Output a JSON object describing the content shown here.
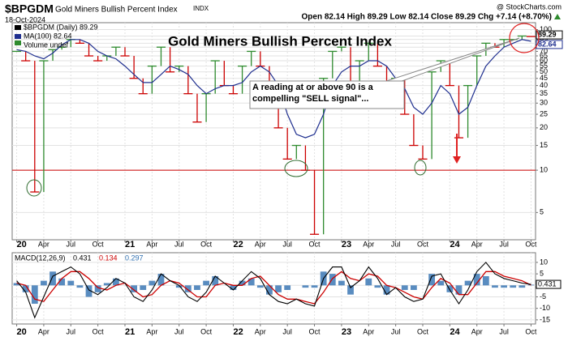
{
  "header": {
    "symbol": "$BPGDM",
    "name": "Gold Miners Bullish Percent Index",
    "exchange": "INDX",
    "date": "18-Oct-2024",
    "source": "@ StockCharts.com",
    "quote": "Open 82.14 High 89.29 Low 82.14 Close 89.29 Chg +7.14 (+8.70%)"
  },
  "chart_data": [
    {
      "type": "line",
      "title": "Gold Miners Bullish Percent Index",
      "x": [
        "2020-01",
        "2020-02",
        "2020-03",
        "2020-04",
        "2020-05",
        "2020-06",
        "2020-07",
        "2020-08",
        "2020-09",
        "2020-10",
        "2020-11",
        "2020-12",
        "2021-01",
        "2021-02",
        "2021-03",
        "2021-04",
        "2021-05",
        "2021-06",
        "2021-07",
        "2021-08",
        "2021-09",
        "2021-10",
        "2021-11",
        "2021-12",
        "2022-01",
        "2022-02",
        "2022-03",
        "2022-04",
        "2022-05",
        "2022-06",
        "2022-07",
        "2022-08",
        "2022-09",
        "2022-10",
        "2022-11",
        "2022-12",
        "2023-01",
        "2023-02",
        "2023-03",
        "2023-04",
        "2023-05",
        "2023-06",
        "2023-07",
        "2023-08",
        "2023-09",
        "2023-10",
        "2023-11",
        "2023-12",
        "2024-01",
        "2024-02",
        "2024-03",
        "2024-04",
        "2024-05",
        "2024-06",
        "2024-07",
        "2024-08",
        "2024-09",
        "2024-10"
      ],
      "series": [
        {
          "name": "$BPGDM (Daily) 89.29",
          "color": "#000000",
          "end_label": "89.29",
          "values": [
            70,
            60,
            7,
            60,
            72,
            75,
            85,
            80,
            65,
            60,
            65,
            75,
            65,
            45,
            35,
            55,
            75,
            50,
            55,
            35,
            22,
            35,
            60,
            40,
            35,
            55,
            70,
            55,
            30,
            20,
            12,
            15,
            10,
            3.5,
            45,
            70,
            75,
            40,
            60,
            80,
            55,
            35,
            45,
            25,
            15,
            12,
            50,
            60,
            40,
            17,
            40,
            65,
            80,
            75,
            85,
            85,
            90,
            89.29
          ]
        },
        {
          "name": "MA(100) 82.64",
          "color": "#1f2f8f",
          "end_label": "82.64",
          "values": [
            72,
            70,
            65,
            62,
            68,
            78,
            85,
            85,
            80,
            70,
            65,
            62,
            55,
            48,
            42,
            42,
            48,
            55,
            52,
            48,
            40,
            35,
            38,
            40,
            40,
            42,
            50,
            55,
            50,
            40,
            25,
            18,
            17,
            18,
            25,
            40,
            50,
            55,
            55,
            60,
            60,
            55,
            45,
            38,
            28,
            25,
            30,
            40,
            35,
            25,
            28,
            40,
            55,
            65,
            75,
            80,
            85,
            82.64
          ]
        }
      ],
      "legend_note": "Volume undef",
      "up_color": "#2e8b2e",
      "down_color": "#cc0000",
      "log_scale": true,
      "grid": true,
      "ylim": [
        3.2,
        112
      ],
      "yticks": [
        5,
        10,
        15,
        20,
        25,
        30,
        35,
        40,
        45,
        50,
        55,
        60,
        65,
        70,
        75,
        80,
        85,
        90,
        100
      ],
      "xticks": [
        {
          "value": "2020-01",
          "label": "20"
        },
        {
          "value": "2020-04",
          "label": "Apr"
        },
        {
          "value": "2020-07",
          "label": "Jul"
        },
        {
          "value": "2020-10",
          "label": "Oct"
        },
        {
          "value": "2021-01",
          "label": "21"
        },
        {
          "value": "2021-04",
          "label": "Apr"
        },
        {
          "value": "2021-07",
          "label": "Jul"
        },
        {
          "value": "2021-10",
          "label": "Oct"
        },
        {
          "value": "2022-01",
          "label": "22"
        },
        {
          "value": "2022-04",
          "label": "Apr"
        },
        {
          "value": "2022-07",
          "label": "Jul"
        },
        {
          "value": "2022-10",
          "label": "Oct"
        },
        {
          "value": "2023-01",
          "label": "23"
        },
        {
          "value": "2023-04",
          "label": "Apr"
        },
        {
          "value": "2023-07",
          "label": "Jul"
        },
        {
          "value": "2023-10",
          "label": "Oct"
        },
        {
          "value": "2024-01",
          "label": "24"
        },
        {
          "value": "2024-04",
          "label": "Apr"
        },
        {
          "value": "2024-07",
          "label": "Jul"
        },
        {
          "value": "2024-10",
          "label": "Oct"
        }
      ],
      "hline": {
        "value": 10,
        "color": "#cc0000"
      },
      "annotation": "A reading at or above 90 is a compelling \"SELL signal\"..."
    },
    {
      "type": "macd",
      "title": "MACD(12,26,9)",
      "series": [
        {
          "name": "0.431",
          "color": "#000000",
          "values": [
            2,
            -3,
            -14,
            -5,
            4,
            6,
            8,
            5,
            -2,
            -4,
            -1,
            3,
            1,
            -5,
            -7,
            -2,
            5,
            2,
            0,
            -5,
            -7,
            -3,
            4,
            1,
            -2,
            2,
            6,
            3,
            -4,
            -7,
            -8,
            -6,
            -8,
            -9,
            3,
            8,
            8,
            -1,
            2,
            8,
            3,
            -4,
            -1,
            -5,
            -7,
            -6,
            4,
            5,
            -2,
            -8,
            -2,
            6,
            10,
            5,
            3,
            2,
            1,
            0.431
          ]
        },
        {
          "name": "0.134",
          "color": "#cc0000",
          "values": [
            1,
            0,
            -6,
            -7,
            -2,
            3,
            6,
            6,
            3,
            -1,
            -2,
            0,
            1,
            -2,
            -5,
            -4,
            0,
            2,
            1,
            -2,
            -5,
            -5,
            0,
            1,
            0,
            0,
            3,
            4,
            0,
            -4,
            -6,
            -6,
            -7,
            -8,
            -3,
            3,
            6,
            3,
            2,
            5,
            4,
            0,
            -1,
            -3,
            -5,
            -6,
            -1,
            3,
            1,
            -4,
            -4,
            1,
            6,
            6,
            4,
            3,
            2,
            0.134
          ]
        },
        {
          "name": "0.297",
          "color": "#2f6fb0",
          "values": [
            1,
            -3,
            -8,
            2,
            6,
            3,
            2,
            -1,
            -5,
            -3,
            1,
            3,
            0,
            -3,
            -2,
            2,
            5,
            0,
            -1,
            -3,
            -2,
            2,
            4,
            0,
            -2,
            2,
            3,
            -1,
            -4,
            -3,
            -2,
            0,
            -1,
            -1,
            6,
            5,
            2,
            -4,
            0,
            3,
            -1,
            -4,
            0,
            -2,
            -2,
            0,
            5,
            2,
            -3,
            -4,
            2,
            5,
            4,
            -1,
            -1,
            -1,
            -1,
            0.297
          ]
        }
      ],
      "ylim": [
        -16.8,
        14.2
      ],
      "yticks": [
        -15,
        -10,
        -5,
        0,
        5,
        10
      ],
      "grid": true
    }
  ]
}
